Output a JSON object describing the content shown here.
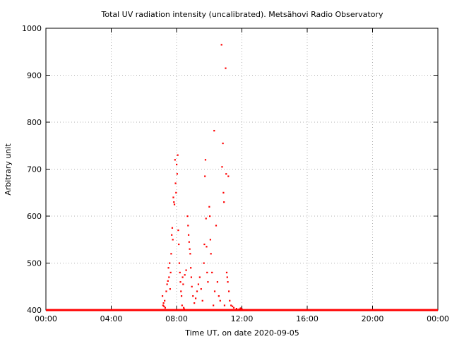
{
  "chart_data": {
    "type": "scatter",
    "title": "Total UV radiation intensity (uncalibrated). Metsähovi Radio Observatory",
    "xlabel": "Time UT, on date 2020-09-05",
    "ylabel": "Arbitrary unit",
    "xlim": [
      "00:00",
      "24:00"
    ],
    "ylim": [
      400,
      1000
    ],
    "x_ticks": [
      "00:00",
      "04:00",
      "08:00",
      "12:00",
      "16:00",
      "20:00",
      "00:00"
    ],
    "y_ticks": [
      400,
      500,
      600,
      700,
      800,
      900,
      1000
    ],
    "grid": true,
    "color": "#ff0000",
    "baseline": {
      "value": 400,
      "x_range": [
        "00:00",
        "24:00"
      ]
    },
    "series": [
      {
        "points": [
          [
            "07:08",
            430
          ],
          [
            "07:10",
            410
          ],
          [
            "07:12",
            415
          ],
          [
            "07:14",
            408
          ],
          [
            "07:16",
            420
          ],
          [
            "07:18",
            405
          ],
          [
            "07:22",
            440
          ],
          [
            "07:25",
            455
          ],
          [
            "07:28",
            462
          ],
          [
            "07:30",
            490
          ],
          [
            "07:32",
            470
          ],
          [
            "07:34",
            500
          ],
          [
            "07:36",
            445
          ],
          [
            "07:38",
            480
          ],
          [
            "07:40",
            520
          ],
          [
            "07:42",
            560
          ],
          [
            "07:44",
            575
          ],
          [
            "07:46",
            550
          ],
          [
            "07:48",
            640
          ],
          [
            "07:50",
            630
          ],
          [
            "07:52",
            625
          ],
          [
            "07:54",
            720
          ],
          [
            "07:56",
            670
          ],
          [
            "07:58",
            650
          ],
          [
            "08:00",
            710
          ],
          [
            "08:02",
            690
          ],
          [
            "08:04",
            730
          ],
          [
            "08:06",
            570
          ],
          [
            "08:08",
            540
          ],
          [
            "08:10",
            500
          ],
          [
            "08:12",
            480
          ],
          [
            "08:14",
            460
          ],
          [
            "08:16",
            440
          ],
          [
            "08:18",
            430
          ],
          [
            "08:20",
            410
          ],
          [
            "08:22",
            470
          ],
          [
            "08:24",
            455
          ],
          [
            "08:26",
            405
          ],
          [
            "08:28",
            402
          ],
          [
            "08:30",
            475
          ],
          [
            "08:35",
            485
          ],
          [
            "08:40",
            600
          ],
          [
            "08:42",
            580
          ],
          [
            "08:44",
            560
          ],
          [
            "08:46",
            545
          ],
          [
            "08:48",
            530
          ],
          [
            "08:50",
            520
          ],
          [
            "08:52",
            490
          ],
          [
            "08:54",
            470
          ],
          [
            "08:56",
            450
          ],
          [
            "09:00",
            430
          ],
          [
            "09:05",
            415
          ],
          [
            "09:10",
            425
          ],
          [
            "09:15",
            440
          ],
          [
            "09:20",
            455
          ],
          [
            "09:25",
            470
          ],
          [
            "09:30",
            445
          ],
          [
            "09:35",
            420
          ],
          [
            "09:40",
            500
          ],
          [
            "09:42",
            540
          ],
          [
            "09:44",
            685
          ],
          [
            "09:46",
            720
          ],
          [
            "09:48",
            595
          ],
          [
            "09:50",
            535
          ],
          [
            "09:52",
            480
          ],
          [
            "09:55",
            460
          ],
          [
            "10:00",
            620
          ],
          [
            "10:02",
            600
          ],
          [
            "10:04",
            550
          ],
          [
            "10:06",
            520
          ],
          [
            "10:10",
            480
          ],
          [
            "10:15",
            410
          ],
          [
            "10:18",
            782
          ],
          [
            "10:20",
            440
          ],
          [
            "10:25",
            580
          ],
          [
            "10:30",
            460
          ],
          [
            "10:35",
            430
          ],
          [
            "10:40",
            420
          ],
          [
            "10:45",
            965
          ],
          [
            "10:47",
            705
          ],
          [
            "10:50",
            755
          ],
          [
            "10:52",
            650
          ],
          [
            "10:54",
            630
          ],
          [
            "10:56",
            410
          ],
          [
            "11:00",
            915
          ],
          [
            "11:02",
            690
          ],
          [
            "11:04",
            480
          ],
          [
            "11:06",
            470
          ],
          [
            "11:08",
            460
          ],
          [
            "11:10",
            685
          ],
          [
            "11:12",
            440
          ],
          [
            "11:15",
            420
          ],
          [
            "11:20",
            410
          ],
          [
            "11:25",
            408
          ],
          [
            "11:30",
            405
          ],
          [
            "11:40",
            403
          ],
          [
            "11:50",
            402
          ],
          [
            "11:55",
            404
          ],
          [
            "12:00",
            402
          ]
        ]
      }
    ]
  }
}
